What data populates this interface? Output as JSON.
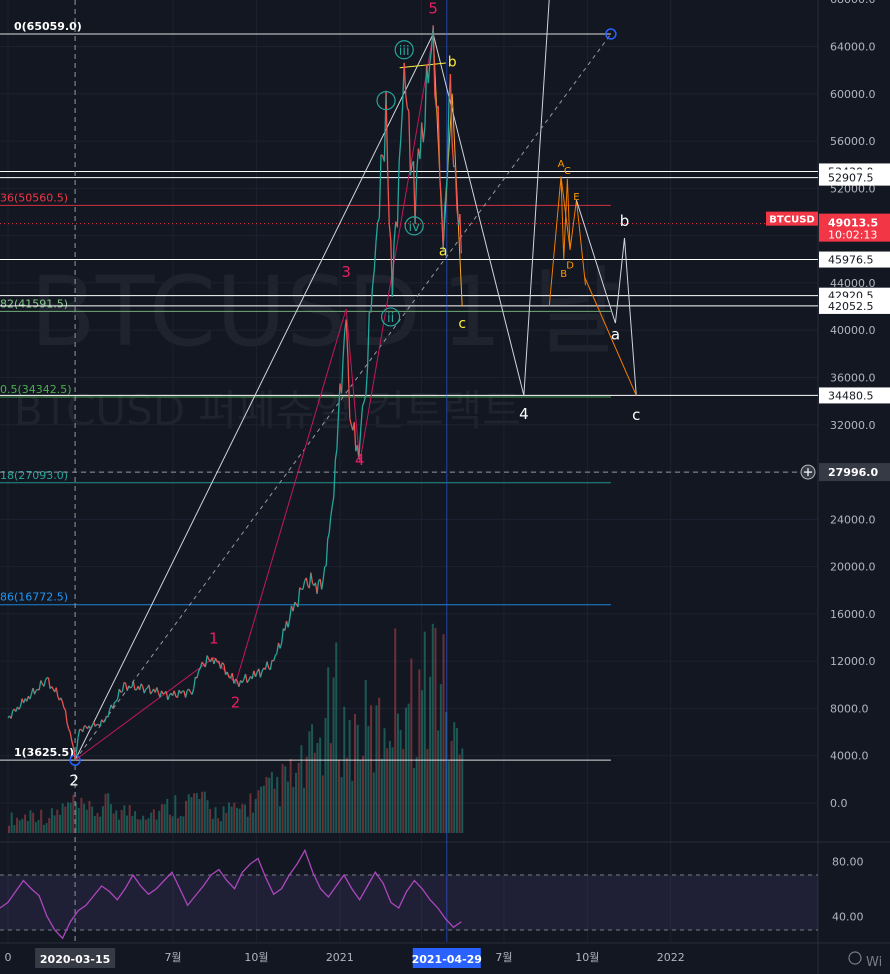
{
  "chart_data": {
    "type": "line",
    "symbol": "BTCUSD",
    "timeframe": "1 날",
    "watermark_sub": "BTCUSD 퍼페츄얼 컨트랙트",
    "y_axis_ticks": [
      "68000.0",
      "64000.0",
      "60000.0",
      "56000.0",
      "52000.0",
      "48000.0",
      "44000.0",
      "40000.0",
      "36000.0",
      "32000.0",
      "28000.0",
      "24000.0",
      "20000.0",
      "16000.0",
      "12000.0",
      "8000.0",
      "4000.0",
      "0.0"
    ],
    "x_axis_ticks": [
      {
        "label": "0",
        "date": "2020-01-01"
      },
      {
        "label": "7월",
        "date": "2020-07-01"
      },
      {
        "label": "10월",
        "date": "2020-10-01"
      },
      {
        "label": "2021",
        "date": "2021-01-01"
      },
      {
        "label": "4",
        "date": "2021-04-01"
      },
      {
        "label": "7월",
        "date": "2021-07-01"
      },
      {
        "label": "10월",
        "date": "2021-10-01"
      },
      {
        "label": "2022",
        "date": "2022-01-01"
      }
    ],
    "crosshair_date_label": "2020-03-15",
    "highlighted_date_label": "2021-04-29",
    "price_tags": [
      {
        "value": 53430.0,
        "label": "53430.0"
      },
      {
        "value": 52907.5,
        "label": "52907.5"
      },
      {
        "value": 45976.5,
        "label": "45976.5"
      },
      {
        "value": 42920.5,
        "label": "42920.5"
      },
      {
        "value": 42052.5,
        "label": "42052.5"
      },
      {
        "value": 34480.5,
        "label": "34480.5"
      }
    ],
    "current_price": {
      "symbol": "BTCUSD",
      "value": "49013.5",
      "countdown": "10:02:13",
      "color": "#f23645"
    },
    "crosshair_price": "27996.0",
    "fib_levels": [
      {
        "label": "0(65059.0)",
        "value": 65059.0,
        "color": "#ffffff"
      },
      {
        "label": "36(50560.5)",
        "value": 50560.5,
        "color": "#f23645"
      },
      {
        "label": "82(41591.5)",
        "value": 41591.5,
        "color": "#81c784"
      },
      {
        "label": "0.5(34342.5)",
        "value": 34342.5,
        "color": "#4caf50"
      },
      {
        "label": "18(27093.0)",
        "value": 27093.0,
        "color": "#26a69a"
      },
      {
        "label": "86(16772.5)",
        "value": 16772.5,
        "color": "#2196f3"
      },
      {
        "label": "1(3625.5)",
        "value": 3625.5,
        "color": "#ffffff"
      }
    ],
    "wave_labels_primary": [
      {
        "text": "1",
        "date": "2020-08-15",
        "price": 13500
      },
      {
        "text": "2",
        "date": "2020-09-08",
        "price": 8100
      },
      {
        "text": "3",
        "date": "2021-01-08",
        "price": 44500
      },
      {
        "text": "4",
        "date": "2021-01-23",
        "price": 28600
      },
      {
        "text": "5",
        "date": "2021-04-14",
        "price": 66800
      }
    ],
    "wave_labels_minor": [
      {
        "text": "i",
        "date": "2021-02-21",
        "price": 59000
      },
      {
        "text": "ii",
        "date": "2021-02-26",
        "price": 40700
      },
      {
        "text": "iii",
        "date": "2021-03-13",
        "price": 63300
      },
      {
        "text": "iv",
        "date": "2021-03-24",
        "price": 48400
      }
    ],
    "wave_labels_abc": [
      {
        "text": "a",
        "date": "2021-04-25",
        "price": 46300,
        "color": "#ffeb3b"
      },
      {
        "text": "b",
        "date": "2021-05-05",
        "price": 62300,
        "color": "#ffeb3b"
      },
      {
        "text": "c",
        "date": "2021-05-16",
        "price": 40200,
        "color": "#ffeb3b"
      }
    ],
    "wave_labels_projection": [
      {
        "text": "2",
        "date": "2020-03-14",
        "price": 1500,
        "color": "#ffffff"
      },
      {
        "text": "4",
        "date": "2021-07-23",
        "price": 32500,
        "color": "#ffffff"
      },
      {
        "text": "a",
        "date": "2021-11-01",
        "price": 39200,
        "color": "#ffffff"
      },
      {
        "text": "b",
        "date": "2021-11-11",
        "price": 48800,
        "color": "#ffffff"
      },
      {
        "text": "c",
        "date": "2021-11-24",
        "price": 32400,
        "color": "#ffffff"
      }
    ],
    "triangle_labels": [
      {
        "text": "A",
        "date": "2021-09-02",
        "price": 53800
      },
      {
        "text": "B",
        "date": "2021-09-05",
        "price": 44500
      },
      {
        "text": "C",
        "date": "2021-09-09",
        "price": 53200
      },
      {
        "text": "D",
        "date": "2021-09-12",
        "price": 45200
      },
      {
        "text": "E",
        "date": "2021-09-19",
        "price": 51000
      }
    ],
    "price_series": [
      {
        "date": "2020-01-01",
        "price": 7200
      },
      {
        "date": "2020-01-20",
        "price": 8700
      },
      {
        "date": "2020-02-13",
        "price": 10400
      },
      {
        "date": "2020-03-01",
        "price": 8600
      },
      {
        "date": "2020-03-13",
        "price": 4800
      },
      {
        "date": "2020-03-15",
        "price": 3700
      },
      {
        "date": "2020-03-20",
        "price": 6200
      },
      {
        "date": "2020-04-15",
        "price": 6800
      },
      {
        "date": "2020-05-08",
        "price": 9900
      },
      {
        "date": "2020-06-01",
        "price": 9700
      },
      {
        "date": "2020-06-27",
        "price": 9100
      },
      {
        "date": "2020-07-22",
        "price": 9500
      },
      {
        "date": "2020-08-02",
        "price": 11800
      },
      {
        "date": "2020-08-17",
        "price": 12300
      },
      {
        "date": "2020-09-08",
        "price": 10100
      },
      {
        "date": "2020-09-30",
        "price": 10800
      },
      {
        "date": "2020-10-20",
        "price": 11900
      },
      {
        "date": "2020-11-05",
        "price": 15500
      },
      {
        "date": "2020-11-25",
        "price": 18800
      },
      {
        "date": "2020-12-12",
        "price": 18300
      },
      {
        "date": "2020-12-22",
        "price": 23200
      },
      {
        "date": "2021-01-08",
        "price": 41500
      },
      {
        "date": "2021-01-12",
        "price": 32000
      },
      {
        "date": "2021-01-22",
        "price": 30500
      },
      {
        "date": "2021-01-28",
        "price": 33500
      },
      {
        "date": "2021-02-08",
        "price": 46000
      },
      {
        "date": "2021-02-21",
        "price": 57500
      },
      {
        "date": "2021-02-28",
        "price": 43500
      },
      {
        "date": "2021-03-13",
        "price": 61200
      },
      {
        "date": "2021-03-25",
        "price": 51500
      },
      {
        "date": "2021-04-14",
        "price": 64800
      },
      {
        "date": "2021-04-25",
        "price": 48000
      },
      {
        "date": "2021-05-03",
        "price": 58800
      },
      {
        "date": "2021-05-12",
        "price": 49600
      },
      {
        "date": "2021-05-15",
        "price": 46500
      }
    ],
    "projection_path": [
      {
        "date": "2021-04-14",
        "price": 65059
      },
      {
        "date": "2021-07-23",
        "price": 34480
      },
      {
        "date": "2021-08-25",
        "price": 74000
      }
    ],
    "projection_abc_path": [
      {
        "date": "2021-09-19",
        "price": 51000
      },
      {
        "date": "2021-11-01",
        "price": 40600
      },
      {
        "date": "2021-11-11",
        "price": 47800
      },
      {
        "date": "2021-11-24",
        "price": 34480
      }
    ],
    "rsi": {
      "ticks": [
        "80.00",
        "40.00"
      ],
      "upper": 70,
      "lower": 30,
      "values": [
        46,
        50,
        58,
        66,
        60,
        55,
        40,
        30,
        24,
        36,
        44,
        48,
        55,
        62,
        58,
        52,
        60,
        70,
        62,
        56,
        60,
        66,
        72,
        60,
        48,
        55,
        62,
        70,
        74,
        66,
        60,
        72,
        78,
        82,
        68,
        56,
        60,
        70,
        78,
        88,
        72,
        60,
        54,
        62,
        70,
        60,
        52,
        62,
        72,
        64,
        50,
        46,
        58,
        66,
        60,
        52,
        46,
        38,
        32,
        36
      ]
    },
    "volume": {
      "ticks": [
        "0.0"
      ],
      "values": [
        2,
        2,
        3,
        2,
        3,
        4,
        3,
        3,
        4,
        3,
        3,
        3,
        3,
        4,
        4,
        5,
        3,
        3,
        3,
        4,
        5,
        6,
        7,
        8,
        10,
        14,
        18,
        12,
        15,
        13,
        16,
        22,
        17,
        20,
        25,
        14,
        10
      ]
    },
    "brand": "Wi"
  }
}
